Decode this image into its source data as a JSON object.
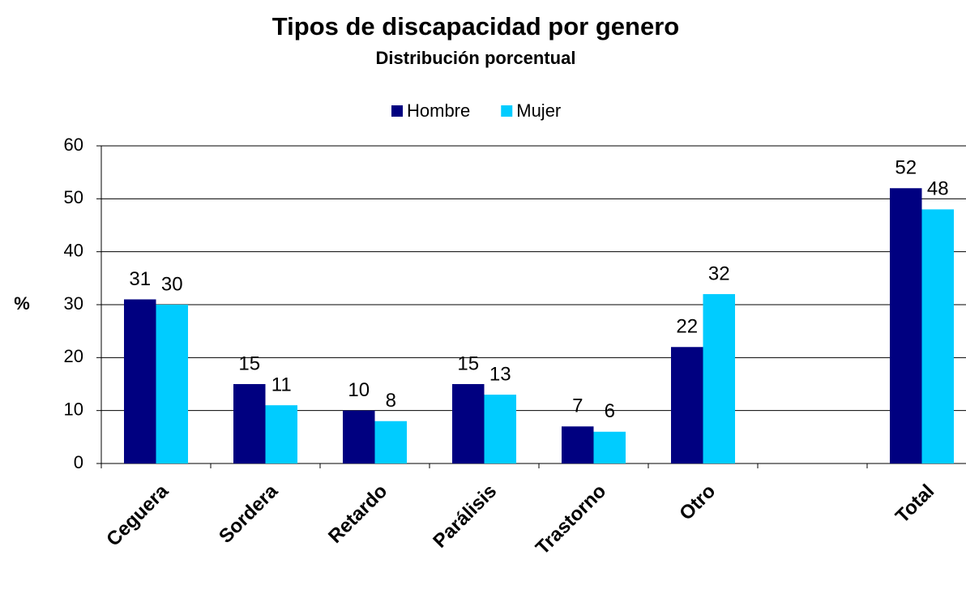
{
  "chart_data": {
    "type": "bar",
    "title": "Tipos de discapacidad por genero",
    "subtitle": "Distribución porcentual",
    "y_label": "%",
    "categories": [
      "Ceguera",
      "Sordera",
      "Retardo",
      "Parálisis",
      "Trastorno",
      "Otro",
      null,
      "Total"
    ],
    "series": [
      {
        "name": "Hombre",
        "color": "#000080",
        "values": [
          31,
          15,
          10,
          15,
          7,
          22,
          null,
          52
        ]
      },
      {
        "name": "Mujer",
        "color": "#00ccff",
        "values": [
          30,
          11,
          8,
          13,
          6,
          32,
          null,
          48
        ]
      }
    ],
    "ylim": [
      0,
      60
    ],
    "yticks": [
      0,
      10,
      20,
      30,
      40,
      50,
      60
    ],
    "grid": true,
    "legend": "top"
  }
}
